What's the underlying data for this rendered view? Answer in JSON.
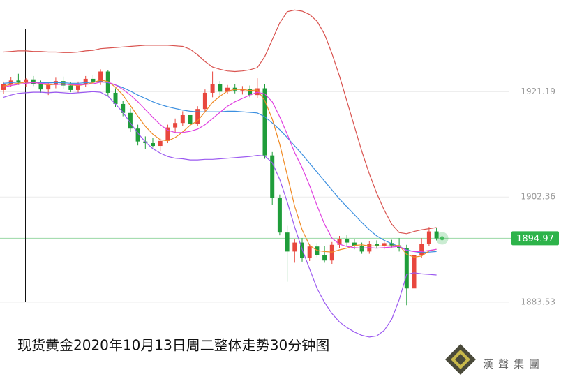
{
  "chart_data": {
    "type": "candlestick",
    "title": "现货黄金2020年10月13日周二整体走势30分钟图",
    "open": [
      1921.5,
      1922.6,
      1923.2,
      1922.8,
      1923.4,
      1922.5,
      1921.6,
      1922.4,
      1923.1,
      1922.3,
      1921.5,
      1922.6,
      1923.5,
      1923.0,
      1924.8,
      1921.0,
      1919.0,
      1917.4,
      1914.6,
      1912.3,
      1912.0,
      1911.5,
      1912.4,
      1914.8,
      1915.6,
      1917.0,
      1915.4,
      1918.1,
      1921.0,
      1922.6,
      1921.2,
      1921.9,
      1921.4,
      1921.7,
      1920.6,
      1921.8,
      1909.8,
      1902.2,
      1896.0,
      1892.6,
      1894.2,
      1891.4,
      1893.5,
      1892.0,
      1891.0,
      1893.8,
      1894.8,
      1894.2,
      1893.6,
      1892.6,
      1893.9,
      1893.6,
      1894.1,
      1893.7,
      1893.2,
      1886.0,
      1892.0,
      1894.0,
      1896.2
    ],
    "high": [
      1923.0,
      1923.8,
      1924.4,
      1923.6,
      1924.0,
      1923.2,
      1922.8,
      1923.7,
      1923.9,
      1922.9,
      1923.0,
      1924.0,
      1924.2,
      1925.2,
      1925.0,
      1921.8,
      1919.6,
      1918.2,
      1915.3,
      1913.2,
      1913.0,
      1912.8,
      1915.3,
      1916.4,
      1917.7,
      1917.6,
      1918.6,
      1921.6,
      1924.8,
      1923.1,
      1922.4,
      1922.5,
      1922.2,
      1922.3,
      1923.6,
      1922.6,
      1910.4,
      1902.8,
      1897.2,
      1894.8,
      1895.0,
      1893.9,
      1894.1,
      1893.6,
      1894.3,
      1895.4,
      1895.6,
      1894.8,
      1894.2,
      1894.4,
      1894.6,
      1894.5,
      1894.7,
      1895.0,
      1893.8,
      1892.6,
      1895.0,
      1897.0,
      1896.8
    ],
    "low": [
      1920.8,
      1922.0,
      1922.4,
      1922.0,
      1922.2,
      1921.0,
      1920.6,
      1921.8,
      1921.7,
      1921.1,
      1921.0,
      1922.1,
      1922.8,
      1922.4,
      1920.5,
      1918.5,
      1916.8,
      1914.0,
      1911.6,
      1911.0,
      1911.2,
      1910.6,
      1912.0,
      1913.8,
      1915.0,
      1914.6,
      1915.0,
      1917.6,
      1920.2,
      1920.5,
      1920.8,
      1920.9,
      1920.7,
      1920.2,
      1920.1,
      1909.2,
      1901.0,
      1895.5,
      1887.2,
      1890.6,
      1890.8,
      1890.9,
      1891.6,
      1890.6,
      1890.4,
      1893.2,
      1893.6,
      1893.0,
      1892.2,
      1892.2,
      1893.2,
      1893.0,
      1893.3,
      1892.6,
      1883.0,
      1885.6,
      1891.4,
      1893.6,
      1894.6
    ],
    "close": [
      1922.6,
      1923.2,
      1922.8,
      1923.4,
      1922.5,
      1921.6,
      1922.4,
      1923.1,
      1922.3,
      1921.5,
      1922.6,
      1923.5,
      1923.0,
      1924.8,
      1921.0,
      1919.0,
      1917.4,
      1914.6,
      1912.3,
      1912.0,
      1911.5,
      1912.4,
      1914.8,
      1915.6,
      1917.0,
      1915.4,
      1918.1,
      1921.0,
      1922.6,
      1921.2,
      1921.9,
      1921.4,
      1921.7,
      1920.6,
      1921.8,
      1909.8,
      1902.2,
      1896.0,
      1892.6,
      1894.2,
      1891.4,
      1893.5,
      1892.0,
      1891.0,
      1893.8,
      1894.8,
      1894.2,
      1893.6,
      1892.6,
      1893.9,
      1893.6,
      1894.1,
      1893.7,
      1893.2,
      1886.0,
      1892.0,
      1894.0,
      1896.2,
      1894.97
    ],
    "up_color": "#e8473e",
    "down_color": "#1f9d3a",
    "series": [
      {
        "color": "#d9534f",
        "values": [
          1928.3,
          1928.4,
          1928.5,
          1928.5,
          1928.4,
          1928.4,
          1928.3,
          1928.3,
          1928.2,
          1928.2,
          1928.3,
          1928.5,
          1928.6,
          1928.9,
          1929.0,
          1929.1,
          1929.2,
          1929.3,
          1929.4,
          1929.5,
          1929.5,
          1929.5,
          1929.5,
          1929.4,
          1929.3,
          1928.8,
          1927.8,
          1926.6,
          1925.6,
          1925.2,
          1924.9,
          1924.8,
          1924.9,
          1925.1,
          1925.5,
          1927.5,
          1930.5,
          1933.5,
          1935.5,
          1935.8,
          1935.6,
          1935.0,
          1933.8,
          1931.5,
          1928.0,
          1924.0,
          1919.5,
          1915.0,
          1910.5,
          1906.5,
          1903.0,
          1900.0,
          1897.5,
          1896.0,
          1895.8,
          1896.2,
          1896.5,
          1896.7,
          1896.9
        ]
      },
      {
        "color": "#9b59f0",
        "values": [
          1920.2,
          1920.6,
          1920.9,
          1921.0,
          1921.1,
          1921.1,
          1921.0,
          1921.1,
          1921.0,
          1920.9,
          1921.0,
          1921.1,
          1921.2,
          1921.1,
          1920.4,
          1919.0,
          1917.5,
          1915.6,
          1913.8,
          1912.2,
          1911.0,
          1910.2,
          1909.6,
          1909.3,
          1909.2,
          1909.0,
          1909.0,
          1909.1,
          1909.1,
          1909.2,
          1909.3,
          1909.4,
          1909.5,
          1909.6,
          1909.8,
          1909.7,
          1908.5,
          1905.5,
          1901.5,
          1897.0,
          1893.0,
          1889.5,
          1886.0,
          1883.5,
          1881.5,
          1880.0,
          1879.0,
          1878.2,
          1877.6,
          1877.3,
          1877.5,
          1878.5,
          1880.5,
          1884.0,
          1888.5,
          1888.8,
          1888.6,
          1888.5,
          1888.4
        ]
      },
      {
        "color": "#3b8fe0",
        "values": [
          1922.7,
          1922.8,
          1922.9,
          1922.9,
          1922.9,
          1922.8,
          1922.8,
          1922.8,
          1922.8,
          1922.7,
          1922.7,
          1922.8,
          1922.9,
          1923.0,
          1922.8,
          1922.4,
          1921.9,
          1921.3,
          1920.6,
          1920.0,
          1919.4,
          1918.9,
          1918.5,
          1918.2,
          1917.9,
          1917.7,
          1917.6,
          1917.6,
          1917.6,
          1917.6,
          1917.7,
          1917.7,
          1917.6,
          1917.5,
          1917.4,
          1916.7,
          1915.6,
          1914.4,
          1913.0,
          1911.5,
          1910.0,
          1908.4,
          1906.8,
          1905.2,
          1903.6,
          1902.0,
          1900.6,
          1899.2,
          1897.8,
          1896.5,
          1895.4,
          1894.6,
          1894.0,
          1893.5,
          1892.9,
          1892.6,
          1892.4,
          1892.5,
          1892.6
        ]
      },
      {
        "color": "#f08a24",
        "values": [
          1922.2,
          1922.5,
          1922.7,
          1922.9,
          1922.9,
          1922.6,
          1922.4,
          1922.5,
          1922.6,
          1922.4,
          1922.3,
          1922.5,
          1922.8,
          1923.3,
          1923.0,
          1922.0,
          1920.6,
          1918.7,
          1916.8,
          1915.0,
          1913.6,
          1912.6,
          1912.4,
          1913.0,
          1914.0,
          1915.2,
          1916.0,
          1917.6,
          1919.3,
          1920.4,
          1921.3,
          1921.6,
          1921.6,
          1921.4,
          1921.5,
          1919.6,
          1916.3,
          1911.8,
          1906.3,
          1900.7,
          1896.5,
          1893.7,
          1892.8,
          1892.6,
          1892.5,
          1892.9,
          1893.2,
          1893.7,
          1893.8,
          1893.6,
          1893.6,
          1893.6,
          1893.6,
          1893.7,
          1892.1,
          1891.6,
          1891.8,
          1892.7,
          1893.0
        ]
      },
      {
        "color": "#e040e0",
        "values": [
          1922.0,
          1922.3,
          1922.5,
          1922.7,
          1922.8,
          1922.7,
          1922.6,
          1922.5,
          1922.5,
          1922.5,
          1922.4,
          1922.5,
          1922.6,
          1922.9,
          1922.9,
          1922.4,
          1921.6,
          1920.6,
          1919.4,
          1918.0,
          1916.6,
          1915.3,
          1914.3,
          1913.9,
          1913.9,
          1914.1,
          1914.5,
          1915.3,
          1916.4,
          1917.5,
          1918.6,
          1919.4,
          1920.0,
          1920.6,
          1921.1,
          1920.8,
          1919.4,
          1916.7,
          1913.6,
          1910.3,
          1907.6,
          1904.4,
          1900.8,
          1897.5,
          1895.0,
          1893.9,
          1893.5,
          1893.3,
          1893.2,
          1893.3,
          1893.2,
          1893.3,
          1893.4,
          1893.5,
          1892.8,
          1892.6,
          1892.6,
          1892.8,
          1893.0
        ]
      }
    ],
    "ylim": [
      1869.8,
      1937.6
    ],
    "yticks": [
      1883.53,
      1902.36,
      1921.19
    ],
    "grid": true,
    "last_price": 1894.97,
    "last_price_color": "#2db34a"
  },
  "logo": {
    "text": "漢聲集團"
  }
}
